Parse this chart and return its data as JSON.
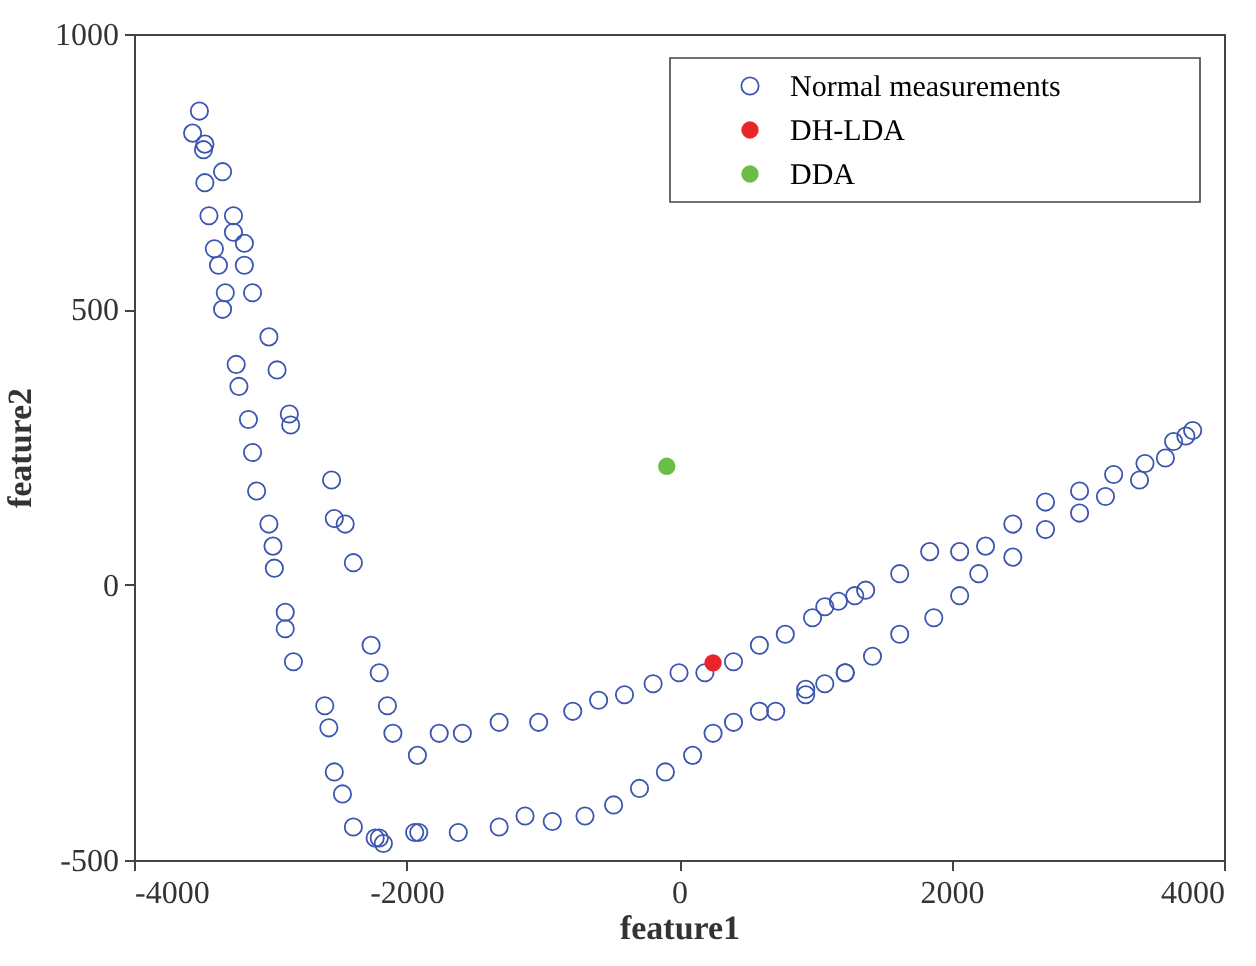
{
  "chart_data": {
    "type": "scatter",
    "xlabel": "feature1",
    "ylabel": "feature2",
    "xlim": [
      -4000,
      4000
    ],
    "ylim": [
      -500,
      1000
    ],
    "xticks": [
      -4000,
      -2000,
      0,
      2000,
      4000
    ],
    "yticks": [
      -500,
      0,
      500,
      1000
    ],
    "grid": false,
    "legend": "top right",
    "marker": "circle",
    "series": [
      {
        "name": "Normal measurements",
        "color": "#3b55b0",
        "x": [
          -3520,
          -3570,
          -3480,
          -3490,
          -3350,
          -3480,
          -3450,
          -3270,
          -3270,
          -3410,
          -3190,
          -3380,
          -3190,
          -3330,
          -3130,
          -3350,
          -3010,
          -3250,
          -2950,
          -3230,
          -3160,
          -2860,
          -2850,
          -3130,
          -3100,
          -2550,
          -2530,
          -2450,
          -2390,
          -3010,
          -2980,
          -2970,
          -2890,
          -2890,
          -2830,
          -2260,
          -2200,
          -2140,
          -2100,
          -1920,
          -2600,
          -2570,
          -2530,
          -2470,
          -2390,
          -2230,
          -2170,
          -1940,
          -2200,
          -1910,
          -1620,
          -1320,
          -1130,
          -930,
          -690,
          -480,
          -290,
          -100,
          100,
          250,
          400,
          590,
          710,
          930,
          1070,
          1220,
          -1760,
          -1590,
          -1320,
          -1030,
          -780,
          -590,
          -400,
          -190,
          0,
          190,
          400,
          590,
          780,
          980,
          1170,
          1290,
          1070,
          1370,
          1620,
          1840,
          2060,
          2250,
          2450,
          2690,
          2940,
          3190,
          3420,
          3630,
          3770,
          930,
          1220,
          1420,
          1620,
          1870,
          2060,
          2200,
          2450,
          2690,
          2940,
          3130,
          3380,
          3570,
          3720
        ],
        "values": [
          860,
          820,
          800,
          790,
          750,
          730,
          670,
          670,
          640,
          610,
          620,
          580,
          580,
          530,
          530,
          500,
          450,
          400,
          390,
          360,
          300,
          310,
          290,
          240,
          170,
          190,
          120,
          110,
          40,
          110,
          70,
          30,
          -50,
          -80,
          -140,
          -110,
          -160,
          -220,
          -270,
          -310,
          -220,
          -260,
          -340,
          -380,
          -440,
          -460,
          -470,
          -450,
          -460,
          -450,
          -450,
          -440,
          -420,
          -430,
          -420,
          -400,
          -370,
          -340,
          -310,
          -270,
          -250,
          -230,
          -230,
          -200,
          -180,
          -160,
          -270,
          -270,
          -250,
          -250,
          -230,
          -210,
          -200,
          -180,
          -160,
          -160,
          -140,
          -110,
          -90,
          -60,
          -30,
          -20,
          -40,
          -10,
          20,
          60,
          60,
          70,
          110,
          150,
          170,
          200,
          220,
          260,
          280,
          -190,
          -160,
          -130,
          -90,
          -60,
          -20,
          20,
          50,
          100,
          130,
          160,
          190,
          230,
          270
        ]
      },
      {
        "name": "DH-LDA",
        "color": "#e8262a",
        "x": [
          250
        ],
        "values": [
          -142
        ]
      },
      {
        "name": "DDA",
        "color": "#6abd45",
        "x": [
          -90
        ],
        "values": [
          215
        ]
      }
    ]
  }
}
